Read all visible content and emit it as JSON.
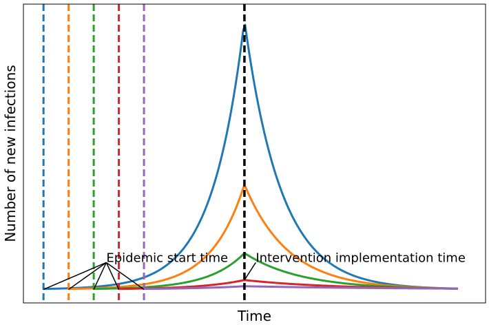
{
  "chart_data": {
    "type": "line",
    "title": "",
    "xlabel": "Time",
    "ylabel": "Number of new infections",
    "xlim": [
      -0.8,
      17.6
    ],
    "ylim": [
      -0.5,
      10.6
    ],
    "grid": false,
    "ticks_shown": false,
    "intervention_time": 8.0,
    "intervention_color": "#000000",
    "final_time": 16.5,
    "final_value": 0.03,
    "series": [
      {
        "color": "#1f77b4",
        "start": 0.0,
        "peak": 10.0
      },
      {
        "color": "#ff7f0e",
        "start": 1.0,
        "peak": 3.9
      },
      {
        "color": "#2ca02c",
        "start": 2.0,
        "peak": 1.35
      },
      {
        "color": "#d62728",
        "start": 3.0,
        "peak": 0.35
      },
      {
        "color": "#9467bd",
        "start": 4.0,
        "peak": 0.12
      }
    ],
    "annotations": [
      {
        "text": "Epidemic start time",
        "anchor_x": 2.5,
        "anchor_y": 1.0,
        "targets": [
          [
            0,
            0
          ],
          [
            1,
            0
          ],
          [
            2,
            0
          ],
          [
            3,
            0
          ],
          [
            4,
            0
          ]
        ]
      },
      {
        "text": "Intervention implementation time",
        "anchor_x": 8.45,
        "anchor_y": 1.0,
        "targets": [
          [
            8.0,
            0.35
          ]
        ]
      }
    ]
  }
}
